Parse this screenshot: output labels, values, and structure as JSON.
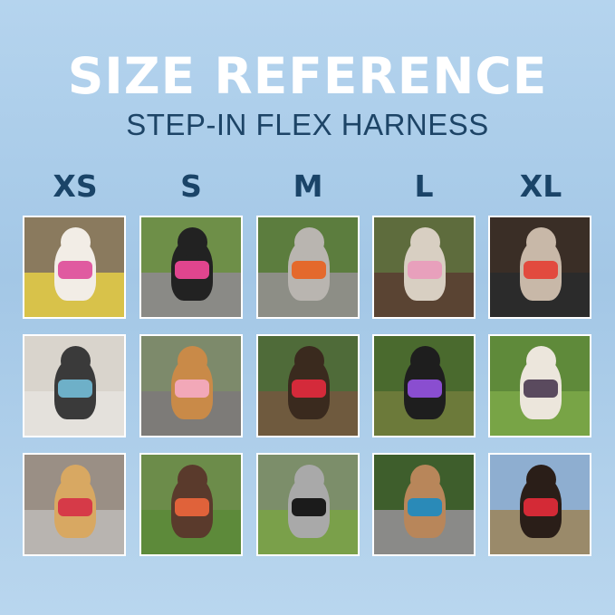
{
  "title": "SIZE REFERENCE",
  "subtitle": "STEP-IN FLEX HARNESS",
  "sizes": [
    "XS",
    "S",
    "M",
    "L",
    "XL"
  ],
  "photos": [
    {
      "size": "XS",
      "bg": "#8a7a5e",
      "ground": "#d8c24a",
      "dog": "#f2ede6",
      "harness": "#e05aa0"
    },
    {
      "size": "S",
      "bg": "#6e8f48",
      "ground": "#8a8a86",
      "dog": "#222",
      "harness": "#e0458e"
    },
    {
      "size": "M",
      "bg": "#5c7d3e",
      "ground": "#8d8e86",
      "dog": "#b9b5b0",
      "harness": "#e4692c"
    },
    {
      "size": "L",
      "bg": "#5e6c3d",
      "ground": "#5a4433",
      "dog": "#d8cfc2",
      "harness": "#e8a0bc"
    },
    {
      "size": "XL",
      "bg": "#3a2e26",
      "ground": "#2b2b2b",
      "dog": "#c8b8a8",
      "harness": "#e24a3e"
    },
    {
      "size": "XS",
      "bg": "#d9d4cc",
      "ground": "#e4e1dc",
      "dog": "#3a3a3a",
      "harness": "#6eb0c8"
    },
    {
      "size": "S",
      "bg": "#7d8a6b",
      "ground": "#7d7b78",
      "dog": "#c98a48",
      "harness": "#f2a8b8"
    },
    {
      "size": "M",
      "bg": "#4f6b39",
      "ground": "#6f5a3e",
      "dog": "#3a2a1e",
      "harness": "#d42a3a"
    },
    {
      "size": "L",
      "bg": "#4a6a2e",
      "ground": "#6c7a3a",
      "dog": "#1e1e1e",
      "harness": "#8a4ed0"
    },
    {
      "size": "XL",
      "bg": "#5f8a3a",
      "ground": "#78a446",
      "dog": "#ece6dc",
      "harness": "#5a4a5e"
    },
    {
      "size": "XS",
      "bg": "#9a8f85",
      "ground": "#b8b4b0",
      "dog": "#d8a862",
      "harness": "#d63a48"
    },
    {
      "size": "S",
      "bg": "#6c8c4a",
      "ground": "#5d8a3a",
      "dog": "#5a3a2c",
      "harness": "#e0623a"
    },
    {
      "size": "M",
      "bg": "#7c8e6a",
      "ground": "#7aa04a",
      "dog": "#a9a9a9",
      "harness": "#1b1b1b"
    },
    {
      "size": "L",
      "bg": "#3e5e2c",
      "ground": "#8a8a88",
      "dog": "#b8865a",
      "harness": "#2a8ab8"
    },
    {
      "size": "XL",
      "bg": "#8eaed0",
      "ground": "#9a8a6a",
      "dog": "#2a1e18",
      "harness": "#d42a36"
    }
  ]
}
